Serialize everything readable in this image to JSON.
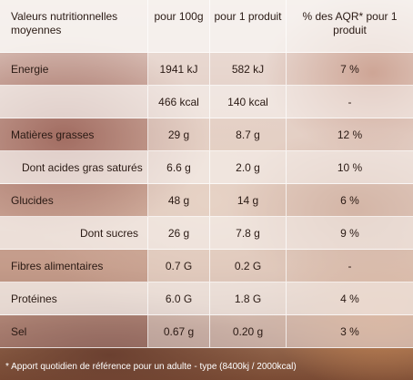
{
  "header": {
    "col_label": "Valeurs nutritionnelles moyennes",
    "col_per100": "pour 100g",
    "col_per_product": "pour 1 produit",
    "col_aqr": "% des AQR* pour 1 produit"
  },
  "rows": [
    {
      "label": "Energie",
      "per100": "1941 kJ",
      "per_product": "582 kJ",
      "aqr": "7 %"
    },
    {
      "label": "",
      "per100": "466 kcal",
      "per_product": "140 kcal",
      "aqr": "-"
    },
    {
      "label": "Matières grasses",
      "per100": "29 g",
      "per_product": "8.7 g",
      "aqr": "12 %"
    },
    {
      "label": "Dont acides gras saturés",
      "per100": "6.6 g",
      "per_product": "2.0 g",
      "aqr": "10 %"
    },
    {
      "label": "Glucides",
      "per100": "48 g",
      "per_product": "14 g",
      "aqr": "6 %"
    },
    {
      "label": "Dont sucres",
      "per100": "26 g",
      "per_product": "7.8 g",
      "aqr": "9 %"
    },
    {
      "label": "Fibres alimentaires",
      "per100": "0.7 G",
      "per_product": "0.2 G",
      "aqr": "-"
    },
    {
      "label": "Protéines",
      "per100": "6.0 G",
      "per_product": "1.8 G",
      "aqr": "4 %"
    },
    {
      "label": "Sel",
      "per100": "0.67 g",
      "per_product": "0.20 g",
      "aqr": "3 %"
    }
  ],
  "footnote": "* Apport quotidien de référence pour un adulte - type (8400kj / 2000kcal)"
}
